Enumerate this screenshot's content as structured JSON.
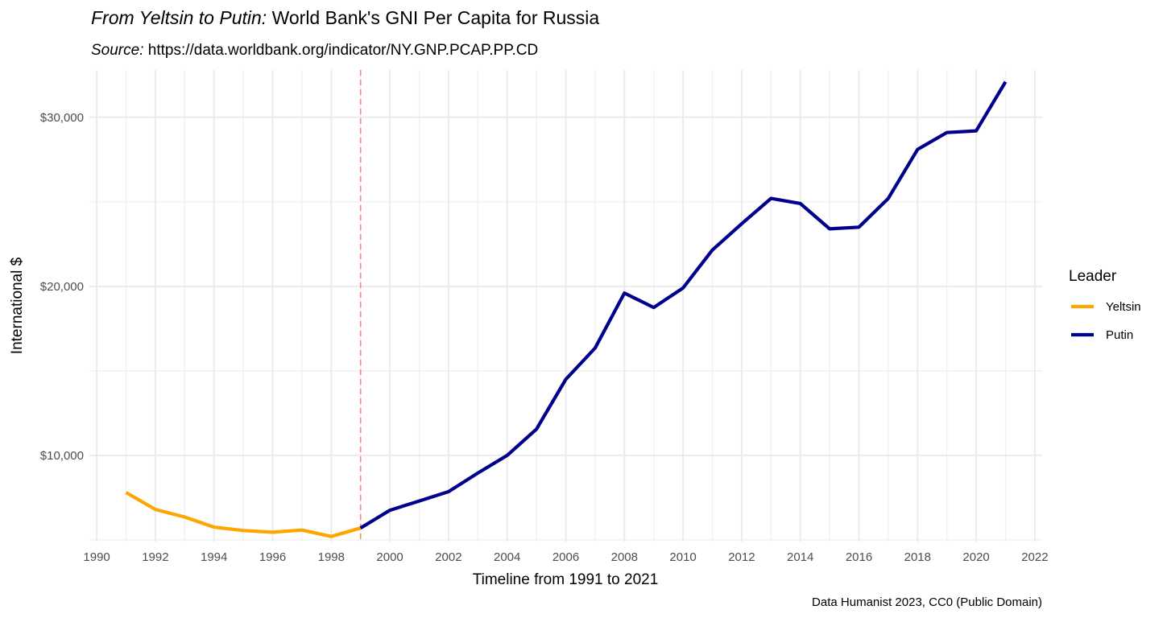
{
  "chart_data": {
    "type": "line",
    "title_italic": "From Yeltsin to Putin:",
    "title_rest": " World Bank's GNI Per Capita for Russia",
    "subtitle_italic": "Source:",
    "subtitle_rest": " https://data.worldbank.org/indicator/NY.GNP.PCAP.PP.CD",
    "xlabel": "Timeline from 1991 to 2021",
    "ylabel": "International $",
    "caption": "Data Humanist 2023, CC0 (Public Domain)",
    "legend_title": "Leader",
    "legend_position": "right",
    "grid": true,
    "xlim": [
      1989.75,
      2022.25
    ],
    "ylim": [
      4900,
      32800
    ],
    "x_ticks": [
      1990,
      1992,
      1994,
      1996,
      1998,
      2000,
      2002,
      2004,
      2006,
      2008,
      2010,
      2012,
      2014,
      2016,
      2018,
      2020,
      2022
    ],
    "y_ticks": [
      10000,
      20000,
      30000
    ],
    "y_tick_labels": [
      "$10,000",
      "$20,000",
      "$30,000"
    ],
    "vline_x": 1999,
    "vline_color": "#ff8080",
    "series": [
      {
        "name": "Yeltsin",
        "color": "#FFA500",
        "x": [
          1991,
          1992,
          1993,
          1994,
          1995,
          1996,
          1997,
          1998,
          1999
        ],
        "y": [
          7800,
          6800,
          6350,
          5750,
          5550,
          5450,
          5580,
          5200,
          5700
        ]
      },
      {
        "name": "Putin",
        "color": "#00008B",
        "x": [
          1999,
          2000,
          2001,
          2002,
          2003,
          2004,
          2005,
          2006,
          2007,
          2008,
          2009,
          2010,
          2011,
          2012,
          2013,
          2014,
          2015,
          2016,
          2017,
          2018,
          2019,
          2020,
          2021
        ],
        "y": [
          5700,
          6750,
          7300,
          7850,
          8950,
          10000,
          11550,
          14500,
          16350,
          19600,
          18750,
          19900,
          22150,
          23700,
          25200,
          24900,
          23400,
          23500,
          25200,
          28100,
          29100,
          29200,
          32100
        ]
      }
    ]
  }
}
